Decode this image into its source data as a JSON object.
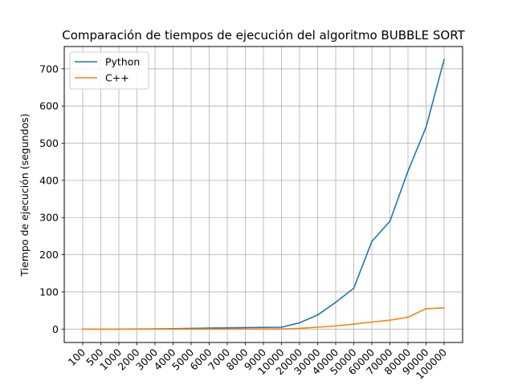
{
  "chart_data": {
    "type": "line",
    "title": "Comparación de tiempos de ejecución del algoritmo BUBBLE SORT",
    "xlabel": "",
    "ylabel": "Tiempo de ejecución (segundos)",
    "categories": [
      "100",
      "500",
      "1000",
      "2000",
      "3000",
      "4000",
      "5000",
      "6000",
      "7000",
      "8000",
      "9000",
      "10000",
      "20000",
      "30000",
      "40000",
      "50000",
      "60000",
      "70000",
      "80000",
      "90000",
      "100000"
    ],
    "yticks": [
      0,
      100,
      200,
      300,
      400,
      500,
      600,
      700
    ],
    "ylim": [
      -36,
      760
    ],
    "grid": true,
    "legend_position": "upper-left",
    "series": [
      {
        "name": "Python",
        "color": "#1f77b4",
        "values": [
          0.0,
          0.02,
          0.08,
          0.3,
          0.7,
          1.2,
          1.8,
          2.6,
          3.4,
          4.0,
          4.6,
          5.0,
          17,
          38,
          72,
          110,
          236,
          290,
          425,
          543,
          725
        ]
      },
      {
        "name": "C++",
        "color": "#ff7f0e",
        "values": [
          0.0,
          0.0,
          0.0,
          0.01,
          0.02,
          0.04,
          0.06,
          0.08,
          0.11,
          0.14,
          0.17,
          0.2,
          2.0,
          5.0,
          8.5,
          13.5,
          19,
          24,
          32,
          55,
          57
        ]
      }
    ]
  }
}
